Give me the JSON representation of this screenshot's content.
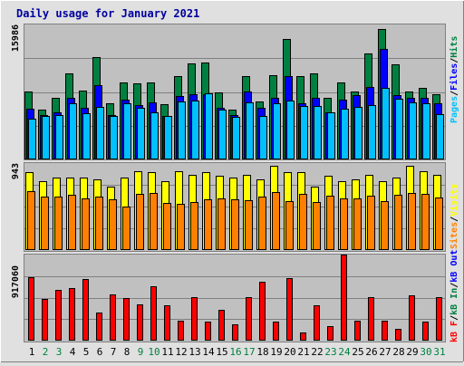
{
  "title": "Daily usage for January 2021",
  "colors": {
    "background": "#e0e0e0",
    "plot_background": "#c0c0c0",
    "title": "#0000a0",
    "hits": "#008040",
    "files": "#0000ff",
    "pages": "#00c0ff",
    "visits": "#ffff00",
    "sites": "#ff8000",
    "kbytes_in": "#008040",
    "kbytes_out": "#0000ff",
    "kbytes_f": "#ff0000",
    "weekend_label": "#008040",
    "weekday_label": "#000000"
  },
  "labels": {
    "hits_legend": [
      "Pages",
      "Files",
      "Hits"
    ],
    "visits_legend": [
      "Sites",
      "Visits"
    ],
    "kbytes_legend": [
      "kB F",
      "kB In",
      "kB Out"
    ],
    "hits_max": "15986",
    "visits_max": "943",
    "kbytes_max": "917060"
  },
  "chart_data": [
    {
      "type": "bar",
      "name": "hits-chart",
      "categories": [
        "1",
        "2",
        "3",
        "4",
        "5",
        "6",
        "7",
        "8",
        "9",
        "10",
        "11",
        "12",
        "13",
        "14",
        "15",
        "16",
        "17",
        "18",
        "19",
        "20",
        "21",
        "22",
        "23",
        "24",
        "25",
        "26",
        "27",
        "28",
        "29",
        "30",
        "31"
      ],
      "weekend": [
        false,
        true,
        true,
        false,
        false,
        false,
        false,
        false,
        true,
        true,
        false,
        false,
        false,
        false,
        false,
        true,
        true,
        false,
        false,
        false,
        false,
        false,
        true,
        true,
        false,
        false,
        false,
        false,
        false,
        true,
        true
      ],
      "ylim": [
        0,
        15986
      ],
      "series": [
        {
          "name": "Hits",
          "values": [
            8000,
            5900,
            7300,
            10200,
            8200,
            12100,
            6700,
            9100,
            9000,
            9100,
            6500,
            9900,
            11400,
            11500,
            7900,
            5900,
            9900,
            6900,
            10000,
            14300,
            9900,
            10200,
            7300,
            9100,
            8000,
            12500,
            15400,
            11300,
            8000,
            8500,
            7700
          ]
        },
        {
          "name": "Files",
          "values": [
            6000,
            5300,
            5600,
            7300,
            6100,
            8800,
            5300,
            7100,
            6400,
            6800,
            5200,
            7500,
            7700,
            7700,
            6100,
            5300,
            8000,
            6100,
            7300,
            9900,
            6700,
            7300,
            5600,
            7100,
            7600,
            8600,
            13100,
            7600,
            7300,
            7300,
            6600
          ]
        },
        {
          "name": "Pages",
          "values": [
            4800,
            5100,
            5300,
            6700,
            5500,
            6200,
            5100,
            6600,
            6100,
            5600,
            5100,
            6900,
            7000,
            7800,
            5900,
            5000,
            6800,
            5200,
            6700,
            7000,
            6300,
            6300,
            5600,
            6000,
            6200,
            6400,
            8500,
            7200,
            6800,
            6600,
            5400
          ]
        }
      ]
    },
    {
      "type": "bar",
      "name": "visits-chart",
      "categories": [
        "1",
        "2",
        "3",
        "4",
        "5",
        "6",
        "7",
        "8",
        "9",
        "10",
        "11",
        "12",
        "13",
        "14",
        "15",
        "16",
        "17",
        "18",
        "19",
        "20",
        "21",
        "22",
        "23",
        "24",
        "25",
        "26",
        "27",
        "28",
        "29",
        "30",
        "31"
      ],
      "ylim": [
        0,
        943
      ],
      "series": [
        {
          "name": "Visits",
          "values": [
            840,
            746,
            783,
            783,
            783,
            764,
            690,
            783,
            858,
            840,
            746,
            858,
            820,
            840,
            802,
            783,
            820,
            764,
            914,
            849,
            849,
            689,
            802,
            745,
            763,
            811,
            745,
            783,
            914,
            858,
            820
          ]
        },
        {
          "name": "Sites",
          "values": [
            640,
            576,
            581,
            597,
            557,
            581,
            551,
            476,
            607,
            623,
            507,
            497,
            519,
            551,
            557,
            549,
            545,
            581,
            631,
            527,
            607,
            523,
            585,
            555,
            555,
            585,
            535,
            597,
            616,
            605,
            572
          ]
        }
      ]
    },
    {
      "type": "bar",
      "name": "kbytes-chart",
      "categories": [
        "1",
        "2",
        "3",
        "4",
        "5",
        "6",
        "7",
        "8",
        "9",
        "10",
        "11",
        "12",
        "13",
        "14",
        "15",
        "16",
        "17",
        "18",
        "19",
        "20",
        "21",
        "22",
        "23",
        "24",
        "25",
        "26",
        "27",
        "28",
        "29",
        "30",
        "31"
      ],
      "ylim": [
        0,
        917060
      ],
      "series": [
        {
          "name": "kB F",
          "values": [
            675000,
            440000,
            541000,
            564000,
            652000,
            297000,
            497000,
            451000,
            386000,
            579000,
            380000,
            210000,
            461000,
            206000,
            330000,
            174000,
            461000,
            625000,
            206000,
            663000,
            90000,
            379000,
            156000,
            917000,
            215000,
            460000,
            211000,
            130000,
            478000,
            206000,
            461000
          ]
        }
      ]
    }
  ]
}
